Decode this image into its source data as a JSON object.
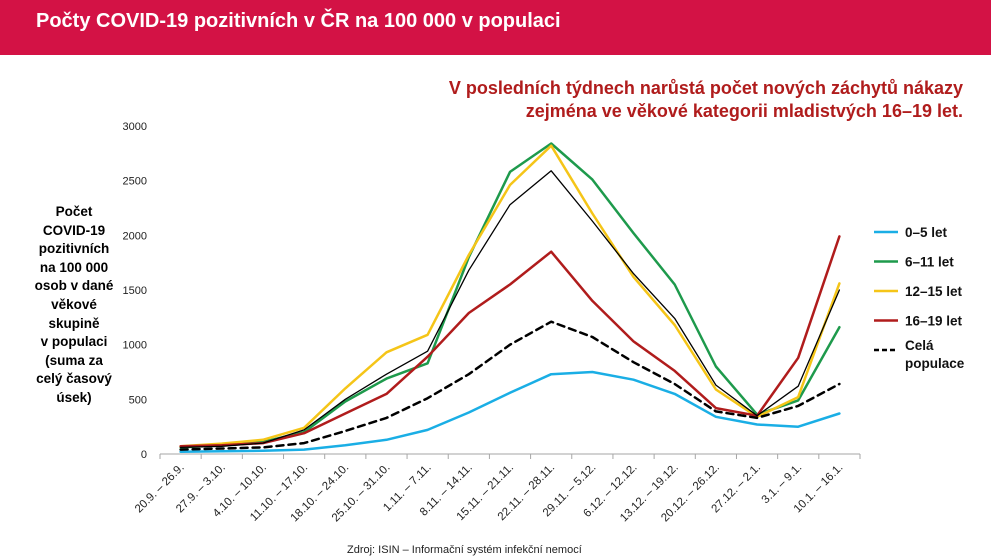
{
  "header": {
    "title": "Počty COVID-19 pozitivních v ČR na 100 000 v populaci"
  },
  "headline": {
    "line1": "V posledních týdnech narůstá počet nových záchytů nákazy",
    "line2": "zejména ve věkové kategorii mladistvých 16–19 let."
  },
  "colors": {
    "header_bg": "#d31245",
    "headline_text": "#b01c1c"
  },
  "chart_data": {
    "type": "line",
    "ylabel_lines": [
      "Počet",
      "COVID-19",
      "pozitivních",
      "na 100 000",
      "osob v dané",
      "věkové",
      "skupině",
      "v populaci",
      "(suma za",
      "celý časový",
      "úsek)"
    ],
    "ylim": [
      0,
      3000
    ],
    "yticks": [
      0,
      500,
      1000,
      1500,
      2000,
      2500,
      3000
    ],
    "grid": false,
    "legend_position": "right",
    "categories": [
      "20.9. – 26.9.",
      "27.9. – 3.10.",
      "4.10. – 10.10.",
      "11.10. – 17.10.",
      "18.10. – 24.10.",
      "25.10. – 31.10.",
      "1.11. – 7.11.",
      "8.11. – 14.11.",
      "15.11. – 21.11.",
      "22.11. – 28.11.",
      "29.11. – 5.12.",
      "6.12. – 12.12.",
      "13.12. – 19.12.",
      "20.12. – 26.12.",
      "27.12. – 2.1.",
      "3.1. – 9.1.",
      "10.1. – 16.1."
    ],
    "series": [
      {
        "name": "0–5 let",
        "color": "#1aaee5",
        "dash": "solid",
        "width": 2.5,
        "values": [
          20,
          25,
          30,
          40,
          80,
          130,
          220,
          380,
          560,
          730,
          750,
          680,
          550,
          340,
          270,
          250,
          370
        ],
        "in_legend": true
      },
      {
        "name": "6–11 let",
        "color": "#1e9a4c",
        "dash": "solid",
        "width": 2.5,
        "values": [
          60,
          80,
          110,
          200,
          480,
          690,
          830,
          1800,
          2580,
          2840,
          2510,
          2020,
          1550,
          800,
          360,
          490,
          1160
        ],
        "in_legend": true
      },
      {
        "name": "12–15 let",
        "color": "#f5c518",
        "dash": "solid",
        "width": 2.5,
        "values": [
          70,
          95,
          130,
          240,
          600,
          930,
          1090,
          1820,
          2460,
          2820,
          2200,
          1620,
          1180,
          590,
          340,
          520,
          1560
        ],
        "in_legend": true
      },
      {
        "name": "16–19 let",
        "color": "#b01c1c",
        "dash": "solid",
        "width": 2.5,
        "values": [
          70,
          80,
          100,
          190,
          370,
          550,
          890,
          1290,
          1550,
          1850,
          1400,
          1030,
          760,
          420,
          350,
          880,
          1990
        ],
        "in_legend": true
      },
      {
        "name": "",
        "color": "#000000",
        "dash": "solid",
        "width": 1.3,
        "values": [
          60,
          70,
          100,
          220,
          500,
          730,
          940,
          1680,
          2280,
          2590,
          2130,
          1650,
          1240,
          630,
          350,
          620,
          1500
        ],
        "in_legend": false
      },
      {
        "name": "Celá populace",
        "color": "#000000",
        "dash": "dashed",
        "width": 2.5,
        "values": [
          40,
          50,
          60,
          100,
          210,
          330,
          510,
          730,
          1000,
          1210,
          1070,
          840,
          640,
          390,
          330,
          440,
          640
        ],
        "in_legend": true
      }
    ]
  },
  "legend": {
    "items": [
      "0–5 let",
      "6–11 let",
      "12–15 let",
      "16–19 let"
    ],
    "dashed_item": [
      "Celá",
      "populace"
    ]
  },
  "source": "Zdroj: ISIN – Informační systém infekční nemocí"
}
